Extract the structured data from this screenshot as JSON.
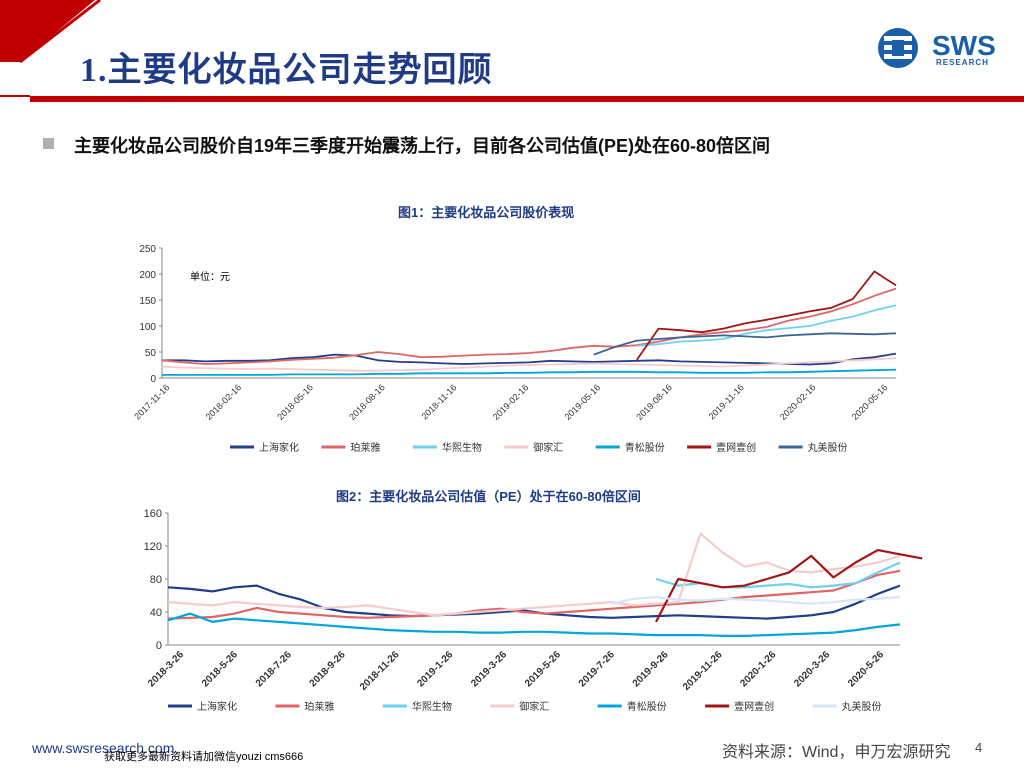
{
  "title": "1.主要化妆品公司走势回顾",
  "logo": {
    "name": "SWS",
    "sub": "RESEARCH"
  },
  "bullet": "主要化妆品公司股价自19年三季度开始震荡上行，目前各公司估值(PE)处在60-80倍区间",
  "colors": {
    "red": "#c00000",
    "navy": "#1f3b86",
    "blue": "#1a5fa8"
  },
  "chart_data": [
    {
      "type": "line",
      "title": "图1：主要化妆品公司股价表现",
      "unit": "单位：元",
      "ylim": [
        0,
        250
      ],
      "yticks": [
        "0",
        "50",
        "100",
        "150",
        "200",
        "250"
      ],
      "x_ticks": [
        "2017-11-16",
        "2018-02-16",
        "2018-05-16",
        "2018-08-16",
        "2018-11-16",
        "2019-02-16",
        "2019-05-16",
        "2019-08-16",
        "2019-11-16",
        "2020-02-16",
        "2020-05-16"
      ],
      "series": [
        {
          "name": "上海家化",
          "color": "#1f3e8c",
          "start": 0,
          "values": [
            34,
            34,
            32,
            33,
            33,
            34,
            38,
            40,
            45,
            43,
            34,
            31,
            30,
            28,
            27,
            28,
            29,
            30,
            33,
            32,
            31,
            32,
            33,
            34,
            32,
            31,
            30,
            29,
            28,
            27,
            26,
            28,
            36,
            40,
            47
          ]
        },
        {
          "name": "珀莱雅",
          "color": "#e06666",
          "start": 0,
          "values": [
            34,
            30,
            27,
            28,
            30,
            32,
            35,
            37,
            39,
            44,
            50,
            46,
            40,
            41,
            43,
            45,
            46,
            48,
            52,
            58,
            62,
            60,
            63,
            70,
            78,
            84,
            88,
            92,
            98,
            110,
            118,
            128,
            142,
            158,
            172
          ]
        },
        {
          "name": "华熙生物",
          "color": "#6fd0f2",
          "start": 22,
          "values": [
            62,
            65,
            70,
            72,
            75,
            85,
            92,
            96,
            100,
            110,
            118,
            130,
            140
          ]
        },
        {
          "name": "御家汇",
          "color": "#f6cbcb",
          "start": 0,
          "values": [
            22,
            20,
            19,
            18,
            17,
            18,
            17,
            16,
            15,
            14,
            14,
            15,
            16,
            18,
            20,
            22,
            24,
            25,
            26,
            27,
            28,
            27,
            26,
            25,
            24,
            23,
            22,
            24,
            26,
            28,
            30,
            32,
            34,
            36,
            38
          ]
        },
        {
          "name": "青松股份",
          "color": "#00a6db",
          "start": 0,
          "values": [
            6,
            6,
            6,
            6,
            6,
            6,
            7,
            7,
            7,
            7,
            8,
            8,
            9,
            9,
            9,
            9,
            10,
            10,
            11,
            11,
            12,
            12,
            12,
            11,
            11,
            10,
            10,
            10,
            11,
            11,
            12,
            13,
            14,
            15,
            16
          ]
        },
        {
          "name": "壹网壹创",
          "color": "#a31515",
          "start": 22,
          "values": [
            35,
            95,
            92,
            88,
            95,
            105,
            112,
            120,
            128,
            135,
            152,
            205,
            178
          ]
        },
        {
          "name": "丸美股份",
          "color": "#3d6496",
          "start": 20,
          "values": [
            45,
            60,
            72,
            75,
            78,
            80,
            82,
            80,
            78,
            82,
            84,
            86,
            85,
            84,
            86
          ]
        }
      ]
    },
    {
      "type": "line",
      "title": "图2：主要化妆品公司估值（PE）处于在60-80倍区间",
      "ylim": [
        0,
        160
      ],
      "yticks": [
        "0",
        "40",
        "80",
        "120",
        "160"
      ],
      "x_ticks": [
        "2018-3-26",
        "2018-5-26",
        "2018-7-26",
        "2018-9-26",
        "2018-11-26",
        "2019-1-26",
        "2019-3-26",
        "2019-5-26",
        "2019-7-26",
        "2019-9-26",
        "2019-11-26",
        "2020-1-26",
        "2020-3-26",
        "2020-5-26"
      ],
      "series": [
        {
          "name": "上海家化",
          "color": "#1f3e8c",
          "start": 0,
          "values": [
            70,
            68,
            65,
            70,
            72,
            62,
            55,
            45,
            40,
            38,
            36,
            35,
            36,
            37,
            38,
            40,
            42,
            38,
            36,
            34,
            33,
            34,
            35,
            36,
            35,
            34,
            33,
            32,
            34,
            36,
            40,
            50,
            62,
            72
          ]
        },
        {
          "name": "珀莱雅",
          "color": "#e06666",
          "start": 0,
          "values": [
            32,
            33,
            34,
            38,
            45,
            40,
            38,
            36,
            34,
            33,
            34,
            35,
            36,
            38,
            42,
            44,
            40,
            38,
            40,
            42,
            44,
            46,
            48,
            50,
            52,
            55,
            58,
            60,
            62,
            64,
            66,
            75,
            85,
            90
          ]
        },
        {
          "name": "华熙生物",
          "color": "#6fd0f2",
          "start": 22,
          "values": [
            80,
            72,
            75,
            70,
            70,
            72,
            74,
            70,
            72,
            75,
            88,
            100
          ]
        },
        {
          "name": "御家汇",
          "color": "#f6cbcb",
          "start": 0,
          "values": [
            52,
            50,
            48,
            52,
            50,
            48,
            46,
            45,
            46,
            48,
            44,
            40,
            36,
            38,
            40,
            42,
            44,
            46,
            48,
            50,
            52,
            48,
            50,
            52,
            135,
            112,
            95,
            100,
            90,
            88,
            92,
            95,
            100,
            108
          ]
        },
        {
          "name": "青松股份",
          "color": "#00a6db",
          "start": 0,
          "values": [
            30,
            38,
            28,
            32,
            30,
            28,
            26,
            24,
            22,
            20,
            18,
            17,
            16,
            16,
            15,
            15,
            16,
            16,
            15,
            14,
            14,
            13,
            12,
            12,
            12,
            11,
            11,
            12,
            13,
            14,
            15,
            18,
            22,
            25
          ]
        },
        {
          "name": "壹网壹创",
          "color": "#a31515",
          "start": 22,
          "values": [
            28,
            80,
            75,
            70,
            72,
            80,
            88,
            108,
            82,
            100,
            115,
            110,
            105
          ]
        },
        {
          "name": "丸美股份",
          "color": "#d6e6f8",
          "start": 20,
          "values": [
            50,
            56,
            58,
            55,
            54,
            56,
            55,
            54,
            52,
            50,
            52,
            55,
            56,
            58
          ]
        }
      ]
    }
  ],
  "footer": {
    "url": "www.swsresearch.com",
    "note": "获取更多最新资料请加微信youzi cms666",
    "source": "资料来源：Wind，申万宏源研究",
    "page": "4"
  }
}
